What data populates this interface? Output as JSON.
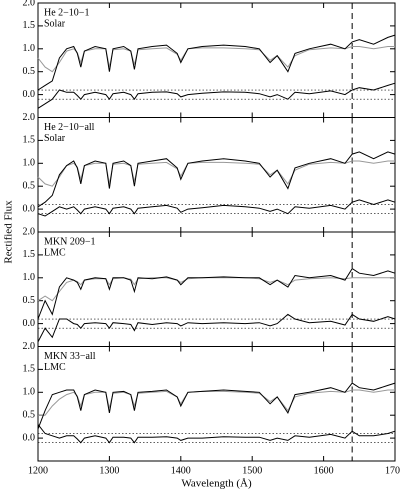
{
  "figure": {
    "ylabel": "Rectified Flux"
  },
  "chart_data": [
    {
      "type": "line",
      "annotations": [
        "He 2−10−1",
        "Solar"
      ],
      "x": [
        1200,
        1210,
        1220,
        1230,
        1240,
        1250,
        1255,
        1260,
        1265,
        1280,
        1295,
        1300,
        1305,
        1320,
        1330,
        1335,
        1340,
        1360,
        1380,
        1395,
        1400,
        1410,
        1430,
        1460,
        1490,
        1510,
        1525,
        1535,
        1550,
        1560,
        1580,
        1610,
        1630,
        1640,
        1650,
        1670,
        1690,
        1700
      ],
      "series": [
        {
          "color": "#000000",
          "values": [
            0.1,
            0.2,
            0.3,
            0.8,
            1.0,
            1.05,
            0.9,
            0.6,
            0.95,
            1.05,
            1.0,
            0.5,
            1.0,
            1.05,
            0.95,
            0.55,
            1.0,
            1.05,
            1.08,
            0.9,
            0.7,
            1.0,
            1.05,
            1.08,
            1.05,
            1.0,
            0.7,
            0.85,
            0.5,
            0.9,
            1.0,
            1.1,
            1.0,
            1.15,
            1.2,
            1.1,
            1.25,
            1.3
          ]
        },
        {
          "color": "#999999",
          "values": [
            0.8,
            0.6,
            0.5,
            0.7,
            0.95,
            1.0,
            0.92,
            0.7,
            0.95,
            1.0,
            1.0,
            0.6,
            0.98,
            1.0,
            0.95,
            0.65,
            0.98,
            1.0,
            1.02,
            0.88,
            0.75,
            1.0,
            1.02,
            1.02,
            1.0,
            0.98,
            0.75,
            0.85,
            0.6,
            0.85,
            0.98,
            1.02,
            1.0,
            1.05,
            1.05,
            1.0,
            1.05,
            1.05
          ]
        },
        {
          "color": "#000000",
          "values": [
            -0.3,
            -0.2,
            -0.1,
            0.1,
            0.05,
            0.05,
            -0.02,
            -0.1,
            0.0,
            0.05,
            0.0,
            -0.1,
            0.02,
            0.05,
            0.0,
            -0.1,
            0.02,
            0.05,
            0.06,
            0.02,
            -0.05,
            0.0,
            0.03,
            0.06,
            0.05,
            0.02,
            -0.05,
            0.0,
            -0.1,
            0.05,
            0.02,
            0.08,
            0.0,
            0.1,
            0.15,
            0.1,
            0.2,
            0.25
          ]
        }
      ],
      "xlim": [
        1200,
        1700
      ],
      "xticks": [
        1200,
        1300,
        1400,
        1500,
        1600,
        1700
      ],
      "ylim": [
        -0.5,
        2.0
      ],
      "yticks": [
        {
          "value": 0,
          "label": "0.0"
        },
        {
          "value": 0.5,
          "label": "0.5"
        },
        {
          "value": 1,
          "label": "1.0"
        },
        {
          "value": 1.5,
          "label": "1.5"
        },
        {
          "value": 2,
          "label": "2.0"
        }
      ],
      "hlines": [
        0.1,
        -0.1
      ],
      "vline": 1640
    },
    {
      "type": "line",
      "annotations": [
        "He 2−10−all",
        "Solar"
      ],
      "x": [
        1200,
        1210,
        1220,
        1230,
        1240,
        1250,
        1255,
        1260,
        1265,
        1280,
        1295,
        1300,
        1305,
        1320,
        1330,
        1335,
        1340,
        1360,
        1380,
        1395,
        1400,
        1410,
        1430,
        1460,
        1490,
        1510,
        1525,
        1535,
        1550,
        1560,
        1580,
        1610,
        1630,
        1640,
        1650,
        1670,
        1690,
        1700
      ],
      "series": [
        {
          "color": "#000000",
          "values": [
            0.05,
            0.15,
            0.3,
            0.75,
            0.95,
            1.05,
            0.9,
            0.55,
            0.95,
            1.05,
            1.0,
            0.45,
            1.0,
            1.05,
            0.95,
            0.5,
            1.0,
            1.05,
            1.1,
            0.9,
            0.65,
            1.0,
            1.05,
            1.1,
            1.05,
            1.0,
            0.7,
            0.85,
            0.45,
            0.9,
            1.0,
            1.1,
            1.0,
            1.2,
            1.25,
            1.1,
            1.25,
            1.2
          ]
        },
        {
          "color": "#999999",
          "values": [
            0.7,
            0.55,
            0.5,
            0.7,
            0.95,
            1.0,
            0.92,
            0.65,
            0.95,
            1.0,
            1.0,
            0.55,
            0.98,
            1.0,
            0.95,
            0.6,
            0.98,
            1.0,
            1.02,
            0.88,
            0.72,
            1.0,
            1.02,
            1.02,
            1.0,
            0.98,
            0.75,
            0.85,
            0.55,
            0.85,
            0.98,
            1.02,
            1.0,
            1.05,
            1.05,
            1.0,
            1.05,
            1.05
          ]
        },
        {
          "color": "#000000",
          "values": [
            -0.1,
            -0.15,
            -0.05,
            0.05,
            0.0,
            0.05,
            -0.02,
            -0.1,
            0.0,
            0.05,
            0.0,
            -0.1,
            0.02,
            0.05,
            0.0,
            -0.1,
            0.02,
            0.05,
            0.08,
            0.02,
            -0.07,
            0.0,
            0.03,
            0.08,
            0.05,
            0.02,
            -0.05,
            0.0,
            -0.1,
            0.05,
            0.02,
            0.08,
            0.0,
            0.15,
            0.2,
            0.1,
            0.2,
            0.15
          ]
        }
      ],
      "xlim": [
        1200,
        1700
      ],
      "xticks": [
        1200,
        1300,
        1400,
        1500,
        1600,
        1700
      ],
      "ylim": [
        -0.5,
        2.0
      ],
      "yticks": [
        {
          "value": 0,
          "label": "0.0"
        },
        {
          "value": 0.5,
          "label": "0.5"
        },
        {
          "value": 1,
          "label": "1.0"
        },
        {
          "value": 1.5,
          "label": "1.5"
        },
        {
          "value": 2,
          "label": "2.0"
        }
      ],
      "hlines": [
        0.1,
        -0.1
      ],
      "vline": 1640
    },
    {
      "type": "line",
      "annotations": [
        "MKN 209−1",
        "LMC"
      ],
      "x": [
        1200,
        1210,
        1220,
        1230,
        1240,
        1250,
        1255,
        1260,
        1265,
        1280,
        1295,
        1300,
        1305,
        1320,
        1330,
        1335,
        1340,
        1360,
        1380,
        1395,
        1400,
        1410,
        1430,
        1460,
        1490,
        1510,
        1525,
        1535,
        1550,
        1560,
        1580,
        1610,
        1630,
        1640,
        1650,
        1670,
        1690,
        1700
      ],
      "series": [
        {
          "color": "#000000",
          "values": [
            0.1,
            0.5,
            0.2,
            0.8,
            1.0,
            0.95,
            0.9,
            0.75,
            0.95,
            1.0,
            0.98,
            0.75,
            1.0,
            1.0,
            0.95,
            0.7,
            1.0,
            0.98,
            1.02,
            0.95,
            0.85,
            1.0,
            1.0,
            1.02,
            1.0,
            1.0,
            0.85,
            0.95,
            0.8,
            1.05,
            1.0,
            1.05,
            0.95,
            1.2,
            1.1,
            1.05,
            1.15,
            1.1
          ]
        },
        {
          "color": "#999999",
          "values": [
            0.5,
            0.6,
            0.5,
            0.7,
            0.9,
            0.95,
            0.92,
            0.85,
            0.95,
            0.98,
            0.98,
            0.85,
            0.98,
            1.0,
            0.97,
            0.85,
            0.98,
            1.0,
            1.0,
            0.95,
            0.9,
            0.98,
            1.0,
            1.0,
            1.0,
            0.98,
            0.9,
            0.95,
            0.85,
            0.95,
            0.98,
            1.0,
            0.98,
            1.0,
            1.0,
            1.0,
            1.0,
            1.0
          ]
        },
        {
          "color": "#000000",
          "values": [
            -0.4,
            -0.1,
            -0.3,
            0.1,
            0.1,
            0.0,
            -0.02,
            -0.1,
            0.0,
            0.02,
            0.0,
            -0.1,
            0.02,
            0.0,
            -0.02,
            -0.15,
            0.02,
            -0.02,
            0.02,
            0.0,
            -0.05,
            0.02,
            0.0,
            0.02,
            0.0,
            0.02,
            -0.05,
            0.0,
            0.2,
            0.1,
            0.02,
            0.05,
            -0.03,
            0.2,
            0.1,
            0.05,
            0.15,
            0.1
          ]
        }
      ],
      "xlim": [
        1200,
        1700
      ],
      "xticks": [
        1200,
        1300,
        1400,
        1500,
        1600,
        1700
      ],
      "ylim": [
        -0.5,
        2.0
      ],
      "yticks": [
        {
          "value": 0,
          "label": "0.0"
        },
        {
          "value": 0.5,
          "label": "0.5"
        },
        {
          "value": 1,
          "label": "1.0"
        },
        {
          "value": 1.5,
          "label": "1.5"
        },
        {
          "value": 2,
          "label": "2.0"
        }
      ],
      "hlines": [
        0.1,
        -0.1
      ],
      "vline": 1640
    },
    {
      "type": "line",
      "annotations": [
        "MKN 33−all",
        "LMC"
      ],
      "x": [
        1200,
        1210,
        1220,
        1230,
        1240,
        1250,
        1255,
        1260,
        1265,
        1280,
        1295,
        1300,
        1305,
        1320,
        1330,
        1335,
        1340,
        1360,
        1380,
        1395,
        1400,
        1410,
        1430,
        1460,
        1490,
        1510,
        1525,
        1535,
        1550,
        1560,
        1580,
        1610,
        1630,
        1640,
        1650,
        1670,
        1690,
        1700
      ],
      "series": [
        {
          "color": "#000000",
          "values": [
            0.2,
            0.6,
            0.95,
            1.0,
            1.05,
            1.05,
            0.9,
            0.6,
            0.95,
            1.05,
            1.0,
            0.55,
            1.0,
            1.02,
            0.95,
            0.6,
            1.0,
            1.02,
            1.05,
            0.9,
            0.7,
            1.0,
            1.02,
            1.05,
            1.02,
            1.0,
            0.75,
            0.9,
            0.55,
            0.95,
            1.0,
            1.1,
            1.0,
            1.2,
            1.1,
            1.05,
            1.15,
            1.2
          ]
        },
        {
          "color": "#999999",
          "values": [
            0.5,
            0.5,
            0.7,
            0.85,
            0.95,
            1.0,
            0.92,
            0.7,
            0.95,
            1.0,
            1.0,
            0.65,
            0.98,
            1.0,
            0.95,
            0.7,
            0.98,
            1.0,
            1.02,
            0.9,
            0.75,
            1.0,
            1.02,
            1.02,
            1.0,
            0.98,
            0.8,
            0.9,
            0.6,
            0.9,
            0.98,
            1.02,
            1.0,
            1.05,
            1.05,
            1.0,
            1.05,
            1.05
          ]
        },
        {
          "color": "#000000",
          "values": [
            0.3,
            0.1,
            0.05,
            0.0,
            0.05,
            0.05,
            -0.02,
            -0.1,
            0.0,
            0.05,
            0.0,
            -0.1,
            0.02,
            0.02,
            0.0,
            -0.1,
            0.02,
            0.02,
            0.03,
            0.0,
            -0.05,
            0.0,
            0.0,
            0.03,
            0.02,
            0.02,
            -0.05,
            0.0,
            -0.05,
            0.05,
            0.02,
            0.08,
            0.0,
            0.15,
            0.05,
            0.05,
            0.1,
            0.15
          ]
        }
      ],
      "xlim": [
        1200,
        1700
      ],
      "xticks": [
        1200,
        1300,
        1400,
        1500,
        1600,
        1700
      ],
      "ylim": [
        -0.5,
        2.0
      ],
      "yticks": [
        {
          "value": 0,
          "label": "0.0"
        },
        {
          "value": 0.5,
          "label": "0.5"
        },
        {
          "value": 1,
          "label": "1.0"
        },
        {
          "value": 1.5,
          "label": "1.5"
        },
        {
          "value": 2,
          "label": "2.0"
        }
      ],
      "hlines": [
        0.1,
        -0.1
      ],
      "vline": 1640,
      "xlabel": "Wavelength (Å)"
    }
  ]
}
